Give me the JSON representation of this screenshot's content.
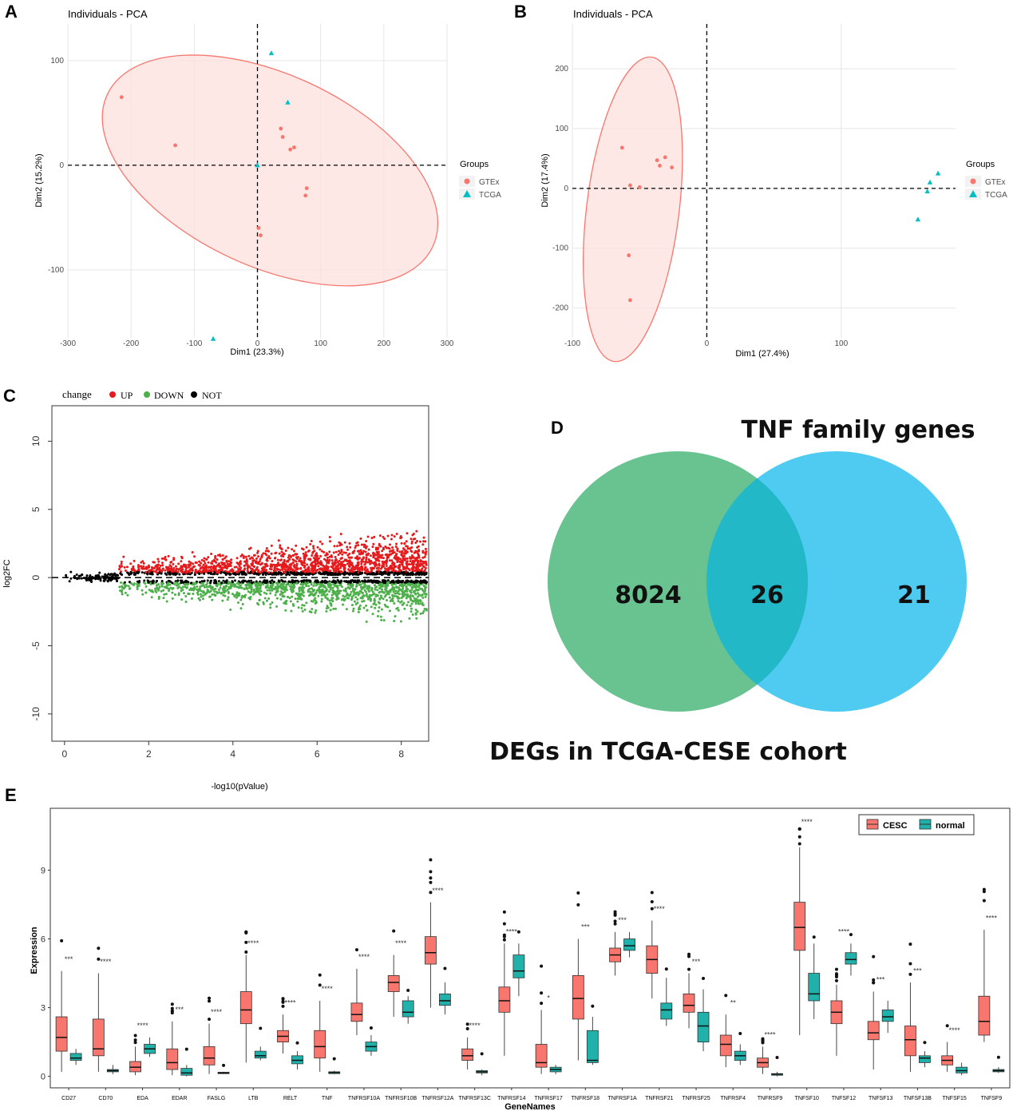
{
  "panel_labels": {
    "a": "A",
    "b": "B",
    "c": "C",
    "d": "D",
    "e": "E"
  },
  "colors": {
    "gtex": "#f8766d",
    "tcga": "#00bfc4",
    "up": "#e41a1c",
    "down": "#4daf4a",
    "not": "#000000",
    "venn_left": "#4db87e",
    "venn_right": "#3cc4ee",
    "venn_overlap": "#22b8c8",
    "cesc": "#f8766d",
    "normal": "#20b2aa"
  },
  "chart_data": [
    {
      "id": "A",
      "type": "scatter",
      "title": "Individuals - PCA",
      "xlabel": "Dim1 (23.3%)",
      "ylabel": "Dim2 (15.2%)",
      "xlim": [
        -300,
        300
      ],
      "ylim": [
        -165,
        135
      ],
      "xticks": [
        "-300",
        "-200",
        "-100",
        "0",
        "100",
        "200",
        "300"
      ],
      "yticks": [
        "-100",
        "0",
        "100"
      ],
      "legend_title": "Groups",
      "legend": [
        "GTEx",
        "TCGA"
      ],
      "series": [
        {
          "name": "GTEx",
          "points": [
            [
              -215,
              65
            ],
            [
              -130,
              19
            ],
            [
              37,
              35
            ],
            [
              40,
              27
            ],
            [
              52,
              15
            ],
            [
              58,
              17
            ],
            [
              78,
              -22
            ],
            [
              76,
              -29
            ],
            [
              2,
              -60
            ],
            [
              5,
              -67
            ]
          ]
        },
        {
          "name": "TCGA",
          "points": [
            [
              22,
              107
            ],
            [
              48,
              60
            ],
            [
              0,
              0
            ],
            [
              -70,
              -166
            ]
          ]
        }
      ]
    },
    {
      "id": "B",
      "type": "scatter",
      "title": "Individuals - PCA",
      "xlabel": "Dim1 (27.4%)",
      "ylabel": "Dim2 (17.4%)",
      "xlim": [
        -100,
        185
      ],
      "ylim": [
        -250,
        275
      ],
      "xticks": [
        "-100",
        "0",
        "100"
      ],
      "yticks": [
        "-200",
        "-100",
        "0",
        "100",
        "200"
      ],
      "legend_title": "Groups",
      "legend": [
        "GTEx",
        "TCGA"
      ],
      "series": [
        {
          "name": "GTEx",
          "points": [
            [
              -63,
              68
            ],
            [
              -57,
              5
            ],
            [
              -50,
              2
            ],
            [
              -37,
              47
            ],
            [
              -35,
              38
            ],
            [
              -31,
              52
            ],
            [
              -26,
              35
            ],
            [
              -58,
              -112
            ],
            [
              -57,
              -187
            ]
          ]
        },
        {
          "name": "TCGA",
          "points": [
            [
              172,
              25
            ],
            [
              166,
              10
            ],
            [
              164,
              -5
            ],
            [
              157,
              -52
            ]
          ]
        }
      ]
    },
    {
      "id": "C",
      "type": "scatter",
      "title": "",
      "xlabel": "-log10(pValue)",
      "ylabel": "log2FC",
      "xlim": [
        -0.3,
        8.65
      ],
      "ylim": [
        -12,
        12.6
      ],
      "xticks": [
        "0",
        "2",
        "4",
        "6",
        "8"
      ],
      "yticks": [
        "10",
        "5",
        "0",
        "-5",
        "-10"
      ],
      "legend_title": "change",
      "legend": [
        "UP",
        "DOWN",
        "NOT"
      ]
    },
    {
      "id": "D",
      "type": "venn",
      "left_label": "DEGs in TCGA-CESE cohort",
      "right_label": "TNF family genes",
      "left_only": "8024",
      "overlap": "26",
      "right_only": "21"
    },
    {
      "id": "E",
      "type": "boxplot",
      "xlabel": "GeneNames",
      "ylabel": "Expression",
      "ylim": [
        -0.5,
        11.7
      ],
      "yticks": [
        "0",
        "3",
        "6",
        "9"
      ],
      "legend": [
        "CESC",
        "normal"
      ],
      "categories": [
        "CD27",
        "CD70",
        "EDA",
        "EDAR",
        "FASLG",
        "LTB",
        "RELT",
        "TNF",
        "TNFRSF10A",
        "TNFRSF10B",
        "TNFRSF12A",
        "TNFRSF13C",
        "TNFRSF14",
        "TNFRSF17",
        "TNFRSF18",
        "TNFRSF1A",
        "TNFRSF21",
        "TNFRSF25",
        "TNFRSF4",
        "TNFRSF9",
        "TNFSF10",
        "TNFSF12",
        "TNFSF13",
        "TNFSF13B",
        "TNFSF15",
        "TNFSF9"
      ],
      "significance": [
        "***",
        "****",
        "****",
        "***",
        "****",
        "****",
        "****",
        "****",
        "****",
        "****",
        "****",
        "****",
        "****",
        "*",
        "***",
        "***",
        "****",
        "***",
        "**",
        "****",
        "****",
        "****",
        "***",
        "***",
        "****",
        "****"
      ],
      "cesc": [
        [
          0.2,
          1.1,
          1.7,
          2.6,
          4.6
        ],
        [
          0.2,
          0.9,
          1.2,
          2.5,
          4.5
        ],
        [
          0.05,
          0.2,
          0.4,
          0.65,
          1.3
        ],
        [
          0.05,
          0.3,
          0.6,
          1.2,
          2.4
        ],
        [
          0.1,
          0.5,
          0.8,
          1.3,
          2.3
        ],
        [
          0.6,
          2.3,
          2.9,
          3.7,
          5.3
        ],
        [
          1.0,
          1.5,
          1.75,
          2.0,
          2.7
        ],
        [
          0.2,
          0.8,
          1.3,
          2.0,
          3.3
        ],
        [
          1.8,
          2.4,
          2.7,
          3.2,
          4.7
        ],
        [
          2.6,
          3.7,
          4.1,
          4.4,
          5.3
        ],
        [
          3.0,
          4.9,
          5.4,
          6.1,
          7.6
        ],
        [
          0.3,
          0.7,
          0.9,
          1.2,
          1.7
        ],
        [
          0.9,
          2.8,
          3.3,
          3.9,
          5.8
        ],
        [
          0.1,
          0.4,
          0.6,
          1.4,
          2.9
        ],
        [
          0.7,
          2.5,
          3.4,
          4.4,
          6.0
        ],
        [
          4.4,
          5.0,
          5.3,
          5.6,
          6.3
        ],
        [
          3.4,
          4.5,
          5.1,
          5.7,
          6.8
        ],
        [
          2.1,
          2.8,
          3.1,
          3.6,
          4.5
        ],
        [
          0.4,
          0.9,
          1.4,
          1.8,
          2.7
        ],
        [
          0.1,
          0.4,
          0.6,
          0.8,
          1.3
        ],
        [
          1.8,
          5.5,
          6.5,
          7.6,
          10.0
        ],
        [
          0.9,
          2.3,
          2.8,
          3.3,
          4.0
        ],
        [
          0.3,
          1.6,
          1.9,
          2.4,
          3.7
        ],
        [
          0.2,
          0.9,
          1.6,
          2.2,
          4.1
        ],
        [
          0.2,
          0.5,
          0.7,
          0.9,
          1.5
        ],
        [
          1.5,
          1.8,
          2.4,
          3.5,
          6.4
        ]
      ],
      "normal": [
        [
          0.5,
          0.7,
          0.8,
          1.0,
          1.2
        ],
        [
          0.1,
          0.2,
          0.25,
          0.3,
          0.5
        ],
        [
          0.85,
          1.0,
          1.2,
          1.4,
          1.7
        ],
        [
          0.0,
          0.05,
          0.15,
          0.35,
          0.5
        ],
        [
          0.1,
          0.12,
          0.15,
          0.18,
          0.2
        ],
        [
          0.7,
          0.8,
          0.9,
          1.1,
          1.3
        ],
        [
          0.3,
          0.55,
          0.7,
          0.9,
          1.1
        ],
        [
          0.1,
          0.12,
          0.17,
          0.2,
          0.25
        ],
        [
          0.9,
          1.1,
          1.3,
          1.5,
          1.8
        ],
        [
          2.3,
          2.6,
          2.8,
          3.3,
          3.5
        ],
        [
          2.7,
          3.1,
          3.3,
          3.6,
          4.1
        ],
        [
          0.05,
          0.15,
          0.2,
          0.25,
          0.3
        ],
        [
          3.5,
          4.3,
          4.6,
          5.3,
          5.8
        ],
        [
          0.1,
          0.2,
          0.3,
          0.4,
          0.5
        ],
        [
          0.5,
          0.6,
          0.7,
          2.0,
          2.6
        ],
        [
          5.2,
          5.5,
          5.7,
          6.0,
          6.3
        ],
        [
          2.2,
          2.5,
          2.9,
          3.2,
          4.3
        ],
        [
          1.1,
          1.5,
          2.2,
          2.8,
          3.8
        ],
        [
          0.5,
          0.7,
          0.9,
          1.1,
          1.4
        ],
        [
          0.0,
          0.05,
          0.1,
          0.12,
          0.2
        ],
        [
          2.5,
          3.3,
          3.6,
          4.5,
          5.8
        ],
        [
          4.4,
          4.9,
          5.1,
          5.4,
          5.8
        ],
        [
          1.9,
          2.4,
          2.6,
          2.9,
          3.3
        ],
        [
          0.4,
          0.6,
          0.8,
          0.9,
          1.1
        ],
        [
          0.05,
          0.15,
          0.25,
          0.4,
          0.6
        ],
        [
          0.15,
          0.2,
          0.25,
          0.3,
          0.4
        ]
      ]
    }
  ]
}
